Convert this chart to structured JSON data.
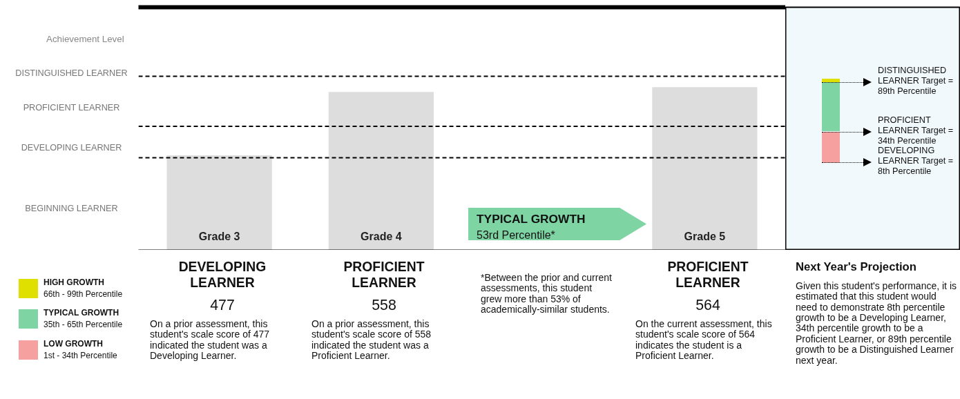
{
  "chart_data": [
    {
      "type": "bar",
      "categories": [
        "Grade 3",
        "Grade 4",
        null,
        "Grade 5"
      ],
      "values": [
        477,
        558,
        null,
        564
      ],
      "color": "#dddddd",
      "ylabel": "Achievement Level",
      "ylim": [
        356,
        666
      ],
      "ref_lines": [
        {
          "axis": "y",
          "value": 474,
          "line_style": "dashed"
        },
        {
          "axis": "y",
          "value": 514,
          "line_style": "dashed"
        },
        {
          "axis": "y",
          "value": 578,
          "line_style": "dashed"
        }
      ],
      "data_labels": true,
      "annotations": [
        "DISTINGUISHED LEARNER",
        "PROFICIENT LEARNER",
        "DEVELOPING LEARNER",
        "BEGINNING LEARNER",
        "DEVELOPING LEARNER",
        "On a prior assessment, this student's scale score of 477 indicated the student was a Developing Learner.",
        "PROFICIENT LEARNER",
        "On a prior assessment, this student's scale score of 558 indicated the student was a Proficient Learner.",
        "PROFICIENT LEARNER",
        "On the current assessment, this student's scale score of 564 indicates the student is a Proficient Learner.",
        "TYPICAL GROWTH",
        "53rd Percentile*",
        "*Between the prior and current assessments, this student grew more than 53% of academically-similar students.",
        "DISTINGUISHED LEARNER Target = 89th Percentile",
        "PROFICIENT LEARNER Target = 34th Percentile",
        "DEVELOPING LEARNER Target = 8th Percentile"
      ]
    },
    {
      "type": "other",
      "categories": [
        "HIGH GROWTH",
        "TYPICAL GROWTH",
        "LOW GROWTH"
      ],
      "colors": [
        "#e0e000",
        "#7fd4a4",
        "#f6a0a0"
      ],
      "annotations": [
        "66th - 99th Percentile",
        "35th - 65th Percentile",
        "1st - 34th Percentile"
      ]
    },
    {
      "type": "other",
      "title": "Next Year's Projection",
      "annotations": [
        "Given this student's performance, it is estimated that this student would need to demonstrate 8th percentile growth to be a Developing Learner, 34th percentile growth to be a Proficient Learner, or 89th percentile growth to be a Distinguished Learner next year."
      ]
    }
  ]
}
